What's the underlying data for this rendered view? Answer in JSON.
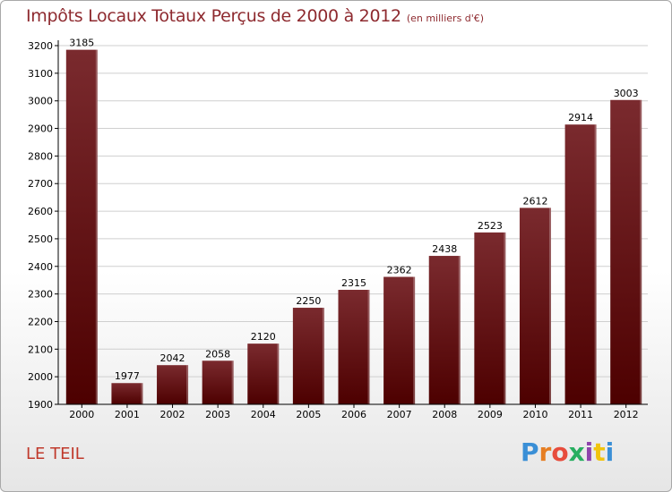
{
  "header": {
    "title": "Impôts Locaux Totaux Perçus de 2000 à 2012",
    "unit": "(en milliers d'€)"
  },
  "commune": "LE TEIL",
  "logo": {
    "text": "Proxiti",
    "letter_colors": [
      "#3a8fd6",
      "#e67e22",
      "#e74c3c",
      "#27ae60",
      "#8e44ad",
      "#f1c40f",
      "#3a8fd6"
    ]
  },
  "colors": {
    "bar_top": "#7a2a2e",
    "bar_bottom": "#4d0000",
    "axis": "#000000",
    "grid": "#cfcfcf",
    "title": "#8e2a2f"
  },
  "chart_data": {
    "type": "bar",
    "title": "Impôts Locaux Totaux Perçus de 2000 à 2012",
    "xlabel": "",
    "ylabel": "",
    "ylim": [
      1900,
      3200
    ],
    "yticks": [
      1900,
      2000,
      2100,
      2200,
      2300,
      2400,
      2500,
      2600,
      2700,
      2800,
      2900,
      3000,
      3100,
      3200
    ],
    "grid": true,
    "categories": [
      "2000",
      "2001",
      "2002",
      "2003",
      "2004",
      "2005",
      "2006",
      "2007",
      "2008",
      "2009",
      "2010",
      "2011",
      "2012"
    ],
    "values": [
      3185,
      1977,
      2042,
      2058,
      2120,
      2250,
      2315,
      2362,
      2438,
      2523,
      2612,
      2914,
      3003
    ]
  }
}
